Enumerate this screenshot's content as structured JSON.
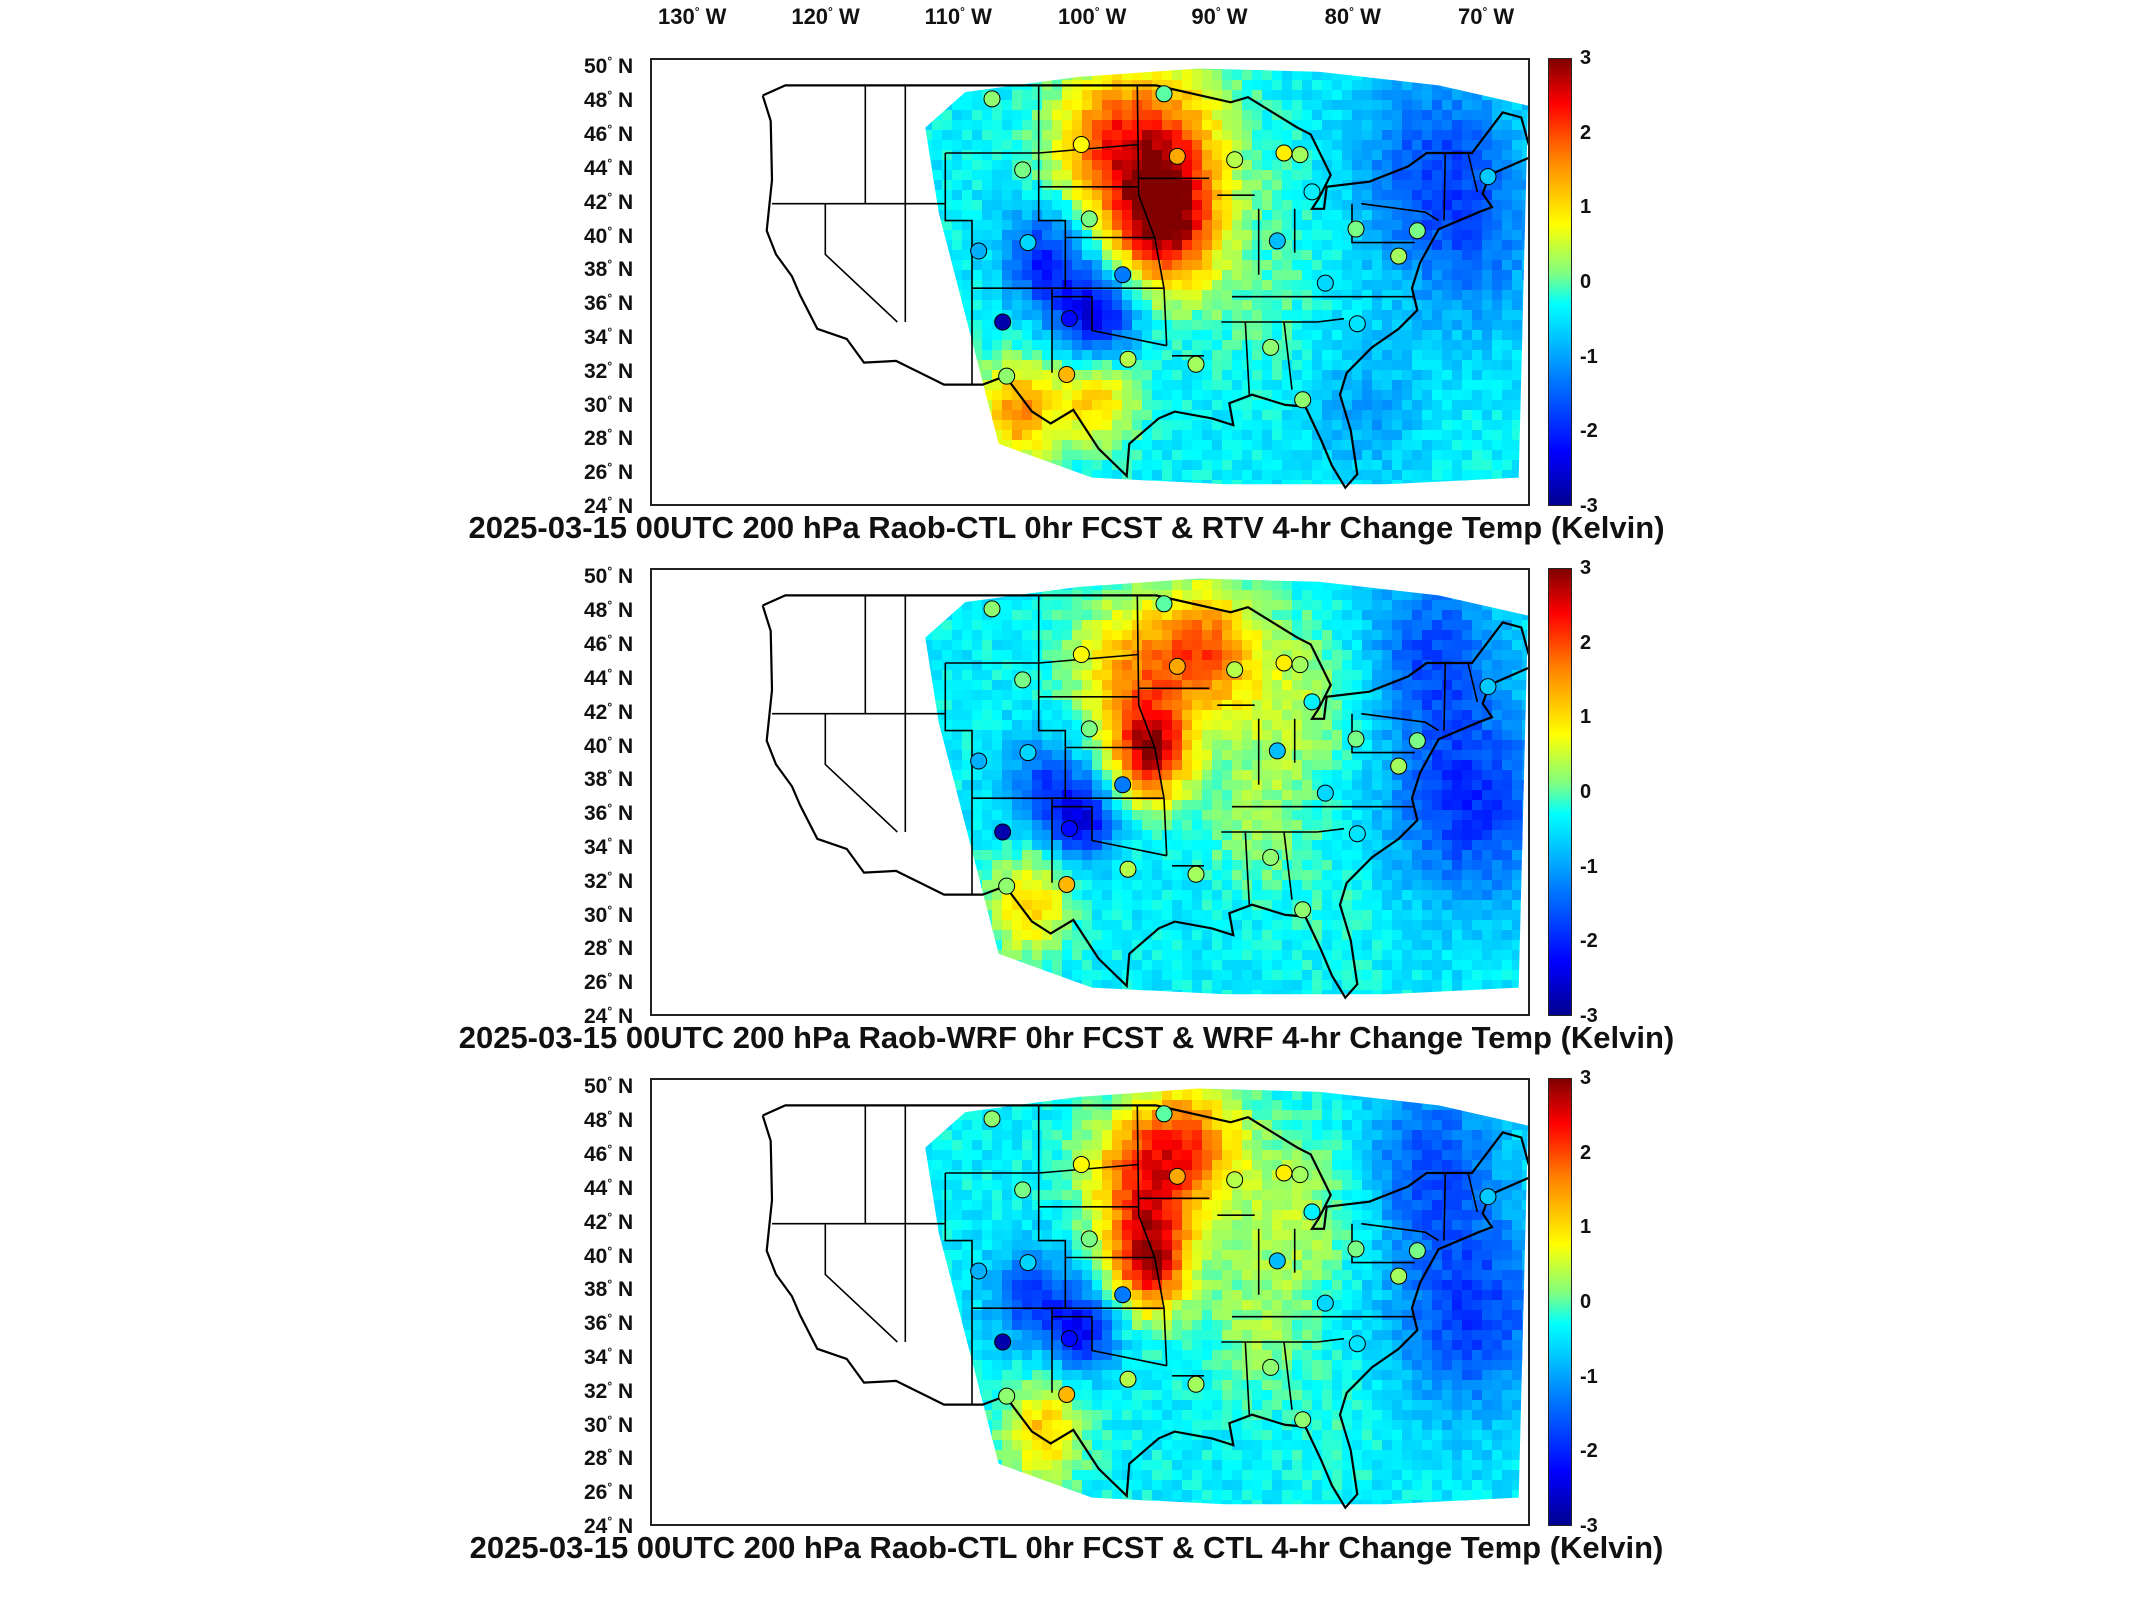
{
  "lon_labels": [
    "130",
    "W",
    "120",
    "W",
    "110",
    "W",
    "100",
    "W",
    "90",
    "W",
    "80",
    "W",
    "70",
    "W"
  ],
  "lon_ticks": [
    {
      "deg": "130",
      "hemi": "W"
    },
    {
      "deg": "120",
      "hemi": "W"
    },
    {
      "deg": "110",
      "hemi": "W"
    },
    {
      "deg": "100",
      "hemi": "W"
    },
    {
      "deg": "90",
      "hemi": "W"
    },
    {
      "deg": "80",
      "hemi": "W"
    },
    {
      "deg": "70",
      "hemi": "W"
    }
  ],
  "lat_ticks": [
    {
      "deg": "50",
      "hemi": "N"
    },
    {
      "deg": "48",
      "hemi": "N"
    },
    {
      "deg": "46",
      "hemi": "N"
    },
    {
      "deg": "44",
      "hemi": "N"
    },
    {
      "deg": "42",
      "hemi": "N"
    },
    {
      "deg": "40",
      "hemi": "N"
    },
    {
      "deg": "38",
      "hemi": "N"
    },
    {
      "deg": "36",
      "hemi": "N"
    },
    {
      "deg": "34",
      "hemi": "N"
    },
    {
      "deg": "32",
      "hemi": "N"
    },
    {
      "deg": "30",
      "hemi": "N"
    },
    {
      "deg": "28",
      "hemi": "N"
    },
    {
      "deg": "26",
      "hemi": "N"
    },
    {
      "deg": "24",
      "hemi": "N"
    }
  ],
  "colorbar": {
    "min": -3,
    "max": 3,
    "ticks": [
      "3",
      "2",
      "1",
      "0",
      "-1",
      "-2",
      "-3"
    ]
  },
  "panels": [
    {
      "title": "2025-03-15 00UTC 200 hPa Raob-CTL 0hr FCST & RTV 4-hr Change Temp (Kelvin)"
    },
    {
      "title": "2025-03-15 00UTC 200 hPa Raob-WRF 0hr FCST & WRF 4-hr Change Temp (Kelvin)"
    },
    {
      "title": "2025-03-15 00UTC 200 hPa Raob-CTL 0hr FCST & CTL 4-hr Change Temp (Kelvin)"
    }
  ],
  "colors": {
    "warm_core": "#a00000",
    "orange": "#ff8a00",
    "yellow": "#f5e60a",
    "green": "#8ee86a",
    "cyan": "#4dd8ff",
    "blue": "#1e6cff",
    "navy": "#00008f"
  },
  "stations": [
    {
      "lon": -107.5,
      "lat": 48.2,
      "value": 0.2
    },
    {
      "lon": -105.2,
      "lat": 44.0,
      "value": 0.1
    },
    {
      "lon": -100.8,
      "lat": 45.5,
      "value": 0.8
    },
    {
      "lon": -94.6,
      "lat": 48.5,
      "value": 0.0
    },
    {
      "lon": -93.6,
      "lat": 44.8,
      "value": 1.4
    },
    {
      "lon": -89.3,
      "lat": 44.6,
      "value": 0.4
    },
    {
      "lon": -85.6,
      "lat": 45.0,
      "value": 0.9
    },
    {
      "lon": -84.4,
      "lat": 44.9,
      "value": 0.3
    },
    {
      "lon": -83.5,
      "lat": 42.7,
      "value": -0.4
    },
    {
      "lon": -100.2,
      "lat": 41.1,
      "value": 0.1
    },
    {
      "lon": -104.8,
      "lat": 39.7,
      "value": -0.6
    },
    {
      "lon": -108.5,
      "lat": 39.2,
      "value": -0.9
    },
    {
      "lon": -97.7,
      "lat": 37.8,
      "value": -1.3
    },
    {
      "lon": -86.1,
      "lat": 39.8,
      "value": -0.8
    },
    {
      "lon": -80.2,
      "lat": 40.5,
      "value": 0.1
    },
    {
      "lon": -77.0,
      "lat": 38.9,
      "value": 0.3
    },
    {
      "lon": -82.5,
      "lat": 37.3,
      "value": -0.6
    },
    {
      "lon": -106.7,
      "lat": 35.0,
      "value": -2.8
    },
    {
      "lon": -101.7,
      "lat": 35.2,
      "value": -2.2
    },
    {
      "lon": -101.9,
      "lat": 31.9,
      "value": 1.3
    },
    {
      "lon": -106.4,
      "lat": 31.8,
      "value": 0.2
    },
    {
      "lon": -97.3,
      "lat": 32.8,
      "value": 0.4
    },
    {
      "lon": -92.2,
      "lat": 32.5,
      "value": 0.3
    },
    {
      "lon": -86.6,
      "lat": 33.5,
      "value": 0.2
    },
    {
      "lon": -84.2,
      "lat": 30.4,
      "value": 0.2
    },
    {
      "lon": -80.1,
      "lat": 34.9,
      "value": -0.5
    },
    {
      "lon": -75.6,
      "lat": 40.4,
      "value": 0.1
    },
    {
      "lon": -70.3,
      "lat": 43.6,
      "value": -0.7
    }
  ]
}
